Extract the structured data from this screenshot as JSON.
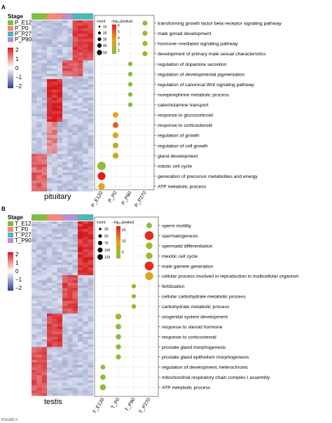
{
  "figure_label": "FIGURE 5",
  "panels": [
    {
      "letter": "A",
      "tissue": "pituitary",
      "stage_title": "Stage",
      "stages": [
        {
          "label": "P_E120",
          "color": "#7fbf3f"
        },
        {
          "label": "P_P0",
          "color": "#f08a7a"
        },
        {
          "label": "P_P270",
          "color": "#4fb8b5"
        },
        {
          "label": "P_P90",
          "color": "#b490cf"
        }
      ],
      "scale_ticks": [
        "2",
        "1",
        "0",
        "−1",
        "−2"
      ],
      "dot_legend": {
        "count_title": "count",
        "count_values": [
          "10",
          "20",
          "30",
          "40",
          "50"
        ],
        "p_title": "−log₁₀(pvalue)",
        "p_ticks": [
          "6",
          "5",
          "4",
          "3",
          "2"
        ]
      },
      "x_categories": [
        "P_E120",
        "P_P0",
        "P_P90",
        "P_P270"
      ],
      "terms": [
        "transforming growth factor beta receptor signaling pathway",
        "male gonad development",
        "hormone−mediated signaling pathway",
        "development of primary male sexual characteristics",
        "regulation of dopamine secretion",
        "regulation of developmental pigmentation",
        "regulation of canonical Wnt signaling pathway",
        "norepinephrine metabolic process",
        "catecholamine transport",
        "response to glucocorticoid",
        "response to corticosteroid",
        "regulation of growth",
        "regulation of cell growth",
        "gland development",
        "mitotic cell cycle",
        "generation of precursor metabolites and energy",
        "ATP metabolic process"
      ]
    },
    {
      "letter": "B",
      "tissue": "testis",
      "stage_title": "Stage",
      "stages": [
        {
          "label": "T_E120",
          "color": "#7fbf3f"
        },
        {
          "label": "T_P0",
          "color": "#f08a7a"
        },
        {
          "label": "T_P270",
          "color": "#4fb8b5"
        },
        {
          "label": "T_P90",
          "color": "#b490cf"
        }
      ],
      "scale_ticks": [
        "2",
        "1",
        "0",
        "−1",
        "−2"
      ],
      "dot_legend": {
        "count_title": "count",
        "count_values": [
          "25",
          "50",
          "75",
          "100",
          "125"
        ],
        "p_title": "−log₁₀(pvalue)",
        "p_ticks": [
          "15",
          "10",
          "5"
        ]
      },
      "x_categories": [
        "T_E120",
        "T_P0",
        "T_P90",
        "T_P270"
      ],
      "terms": [
        "sperm motility",
        "spermatogenesis",
        "spermatid differentiation",
        "meiotic cell cycle",
        "male gamete generation",
        "cellular process involved in reproduction in multicellular organism",
        "fertilization",
        "cellular carbohydrate metabolic process",
        "carbohydrate metabolic process",
        "urogenital system development",
        "response to steroid hormone",
        "response to corticosteroid",
        "prostate gland morphogenesis",
        "prostate gland epithelium morphogenesis",
        "regulation of development, heterochronic",
        "mitochondrial respiratory chain complex I assembly",
        "ATP metabolic process"
      ]
    }
  ],
  "chart_data": [
    {
      "type": "scatter",
      "panel": "A",
      "x_categories": [
        "P_E120",
        "P_P0",
        "P_P90",
        "P_P270"
      ],
      "points": [
        {
          "term": "transforming growth factor beta receptor signaling pathway",
          "x": "P_P270",
          "count": 6,
          "neglog10p": 2.6
        },
        {
          "term": "male gonad development",
          "x": "P_P270",
          "count": 6,
          "neglog10p": 2.6
        },
        {
          "term": "hormone−mediated signaling pathway",
          "x": "P_P270",
          "count": 6,
          "neglog10p": 2.6
        },
        {
          "term": "development of primary male sexual characteristics",
          "x": "P_P270",
          "count": 6,
          "neglog10p": 2.6
        },
        {
          "term": "regulation of dopamine secretion",
          "x": "P_P90",
          "count": 3,
          "neglog10p": 2.1
        },
        {
          "term": "regulation of developmental pigmentation",
          "x": "P_P90",
          "count": 3,
          "neglog10p": 2.1
        },
        {
          "term": "regulation of canonical Wnt signaling pathway",
          "x": "P_P90",
          "count": 3,
          "neglog10p": 2.1
        },
        {
          "term": "norepinephrine metabolic process",
          "x": "P_P90",
          "count": 3,
          "neglog10p": 2.1
        },
        {
          "term": "catecholamine transport",
          "x": "P_P90",
          "count": 3,
          "neglog10p": 2.1
        },
        {
          "term": "response to glucocorticoid",
          "x": "P_P0",
          "count": 10,
          "neglog10p": 4.0
        },
        {
          "term": "response to corticosteroid",
          "x": "P_P0",
          "count": 11,
          "neglog10p": 5.0
        },
        {
          "term": "regulation of growth",
          "x": "P_P0",
          "count": 13,
          "neglog10p": 3.6
        },
        {
          "term": "regulation of cell growth",
          "x": "P_P0",
          "count": 12,
          "neglog10p": 3.4
        },
        {
          "term": "gland development",
          "x": "P_P0",
          "count": 13,
          "neglog10p": 3.3
        },
        {
          "term": "mitotic cell cycle",
          "x": "P_E120",
          "count": 45,
          "neglog10p": 2.5
        },
        {
          "term": "generation of precursor metabolites and energy",
          "x": "P_E120",
          "count": 35,
          "neglog10p": 6.0
        },
        {
          "term": "ATP metabolic process",
          "x": "P_E120",
          "count": 20,
          "neglog10p": 3.8
        }
      ],
      "count_range": [
        1,
        50
      ],
      "neglog10p_range": [
        2,
        6
      ]
    },
    {
      "type": "scatter",
      "panel": "B",
      "x_categories": [
        "T_E120",
        "T_P0",
        "T_P90",
        "T_P270"
      ],
      "points": [
        {
          "term": "sperm motility",
          "x": "T_P270",
          "count": 25,
          "neglog10p": 4
        },
        {
          "term": "spermatogenesis",
          "x": "T_P270",
          "count": 120,
          "neglog10p": 16
        },
        {
          "term": "spermatid differentiation",
          "x": "T_P270",
          "count": 50,
          "neglog10p": 6
        },
        {
          "term": "meiotic cell cycle",
          "x": "T_P270",
          "count": 45,
          "neglog10p": 5
        },
        {
          "term": "male gamete generation",
          "x": "T_P270",
          "count": 120,
          "neglog10p": 16
        },
        {
          "term": "cellular process involved in reproduction in multicellular organism",
          "x": "T_P270",
          "count": 90,
          "neglog10p": 9
        },
        {
          "term": "fertilization",
          "x": "T_P90",
          "count": 8,
          "neglog10p": 4
        },
        {
          "term": "cellular carbohydrate metabolic process",
          "x": "T_P90",
          "count": 8,
          "neglog10p": 4
        },
        {
          "term": "carbohydrate metabolic process",
          "x": "T_P90",
          "count": 10,
          "neglog10p": 4
        },
        {
          "term": "urogenital system development",
          "x": "T_P0",
          "count": 30,
          "neglog10p": 4.5
        },
        {
          "term": "response to steroid hormone",
          "x": "T_P0",
          "count": 25,
          "neglog10p": 4
        },
        {
          "term": "response to corticosteroid",
          "x": "T_P0",
          "count": 20,
          "neglog10p": 4
        },
        {
          "term": "prostate gland morphogenesis",
          "x": "T_P0",
          "count": 18,
          "neglog10p": 4
        },
        {
          "term": "prostate gland epithelium morphogenesis",
          "x": "T_P0",
          "count": 18,
          "neglog10p": 4
        },
        {
          "term": "regulation of development, heterochronic",
          "x": "T_E120",
          "count": 12,
          "neglog10p": 4
        },
        {
          "term": "mitochondrial respiratory chain complex I assembly",
          "x": "T_E120",
          "count": 22,
          "neglog10p": 4
        },
        {
          "term": "ATP metabolic process",
          "x": "T_E120",
          "count": 35,
          "neglog10p": 4.5
        }
      ],
      "count_range": [
        1,
        125
      ],
      "neglog10p_range": [
        3,
        17
      ]
    }
  ]
}
